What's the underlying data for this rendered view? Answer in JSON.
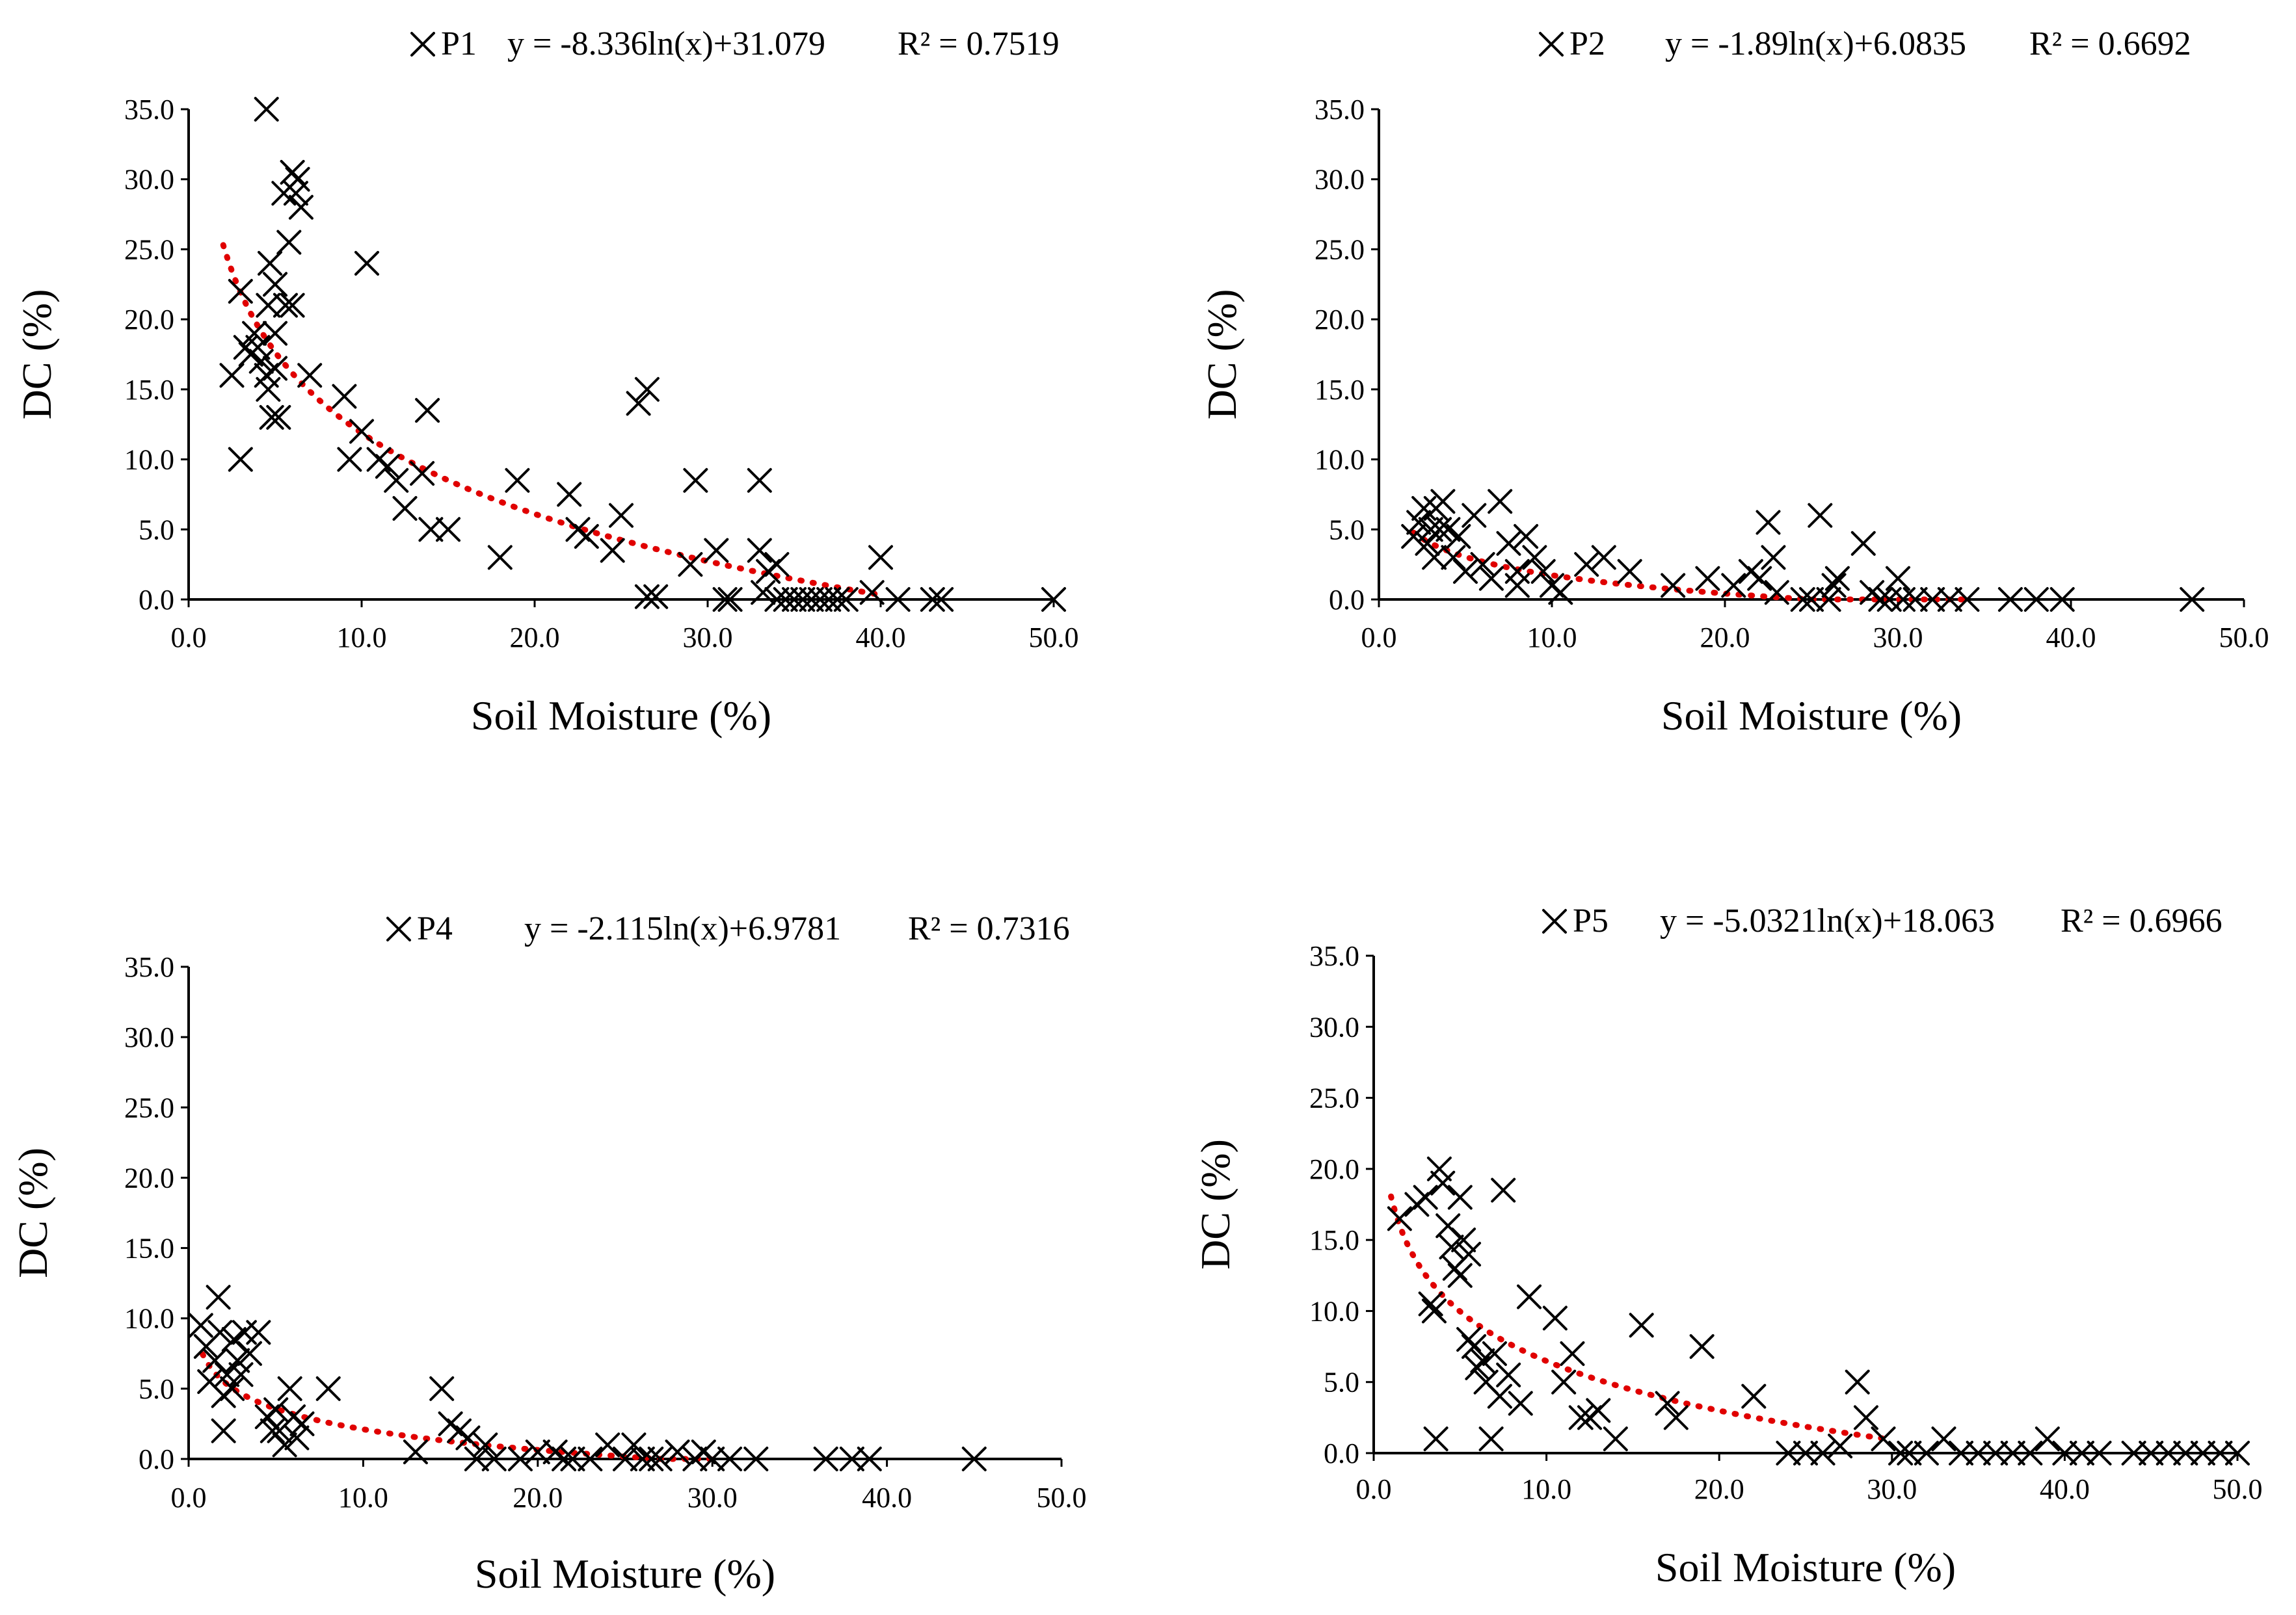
{
  "chart_data": [
    {
      "type": "scatter",
      "series_name": "P1",
      "equation": "y = -8.336ln(x)+31.079",
      "r_squared": "R² = 0.7519",
      "xlabel": "Soil Moisture (%)",
      "ylabel": "DC (%)",
      "xlim": [
        0,
        50
      ],
      "ylim": [
        0,
        35
      ],
      "xticks": [
        "0.0",
        "10.0",
        "20.0",
        "30.0",
        "40.0",
        "50.0"
      ],
      "yticks": [
        "0.0",
        "5.0",
        "10.0",
        "15.0",
        "20.0",
        "25.0",
        "30.0",
        "35.0"
      ],
      "trend": {
        "a": -8.336,
        "b": 31.079,
        "x_from": 2,
        "x_to": 40
      },
      "points": [
        [
          2.5,
          16
        ],
        [
          3,
          22
        ],
        [
          3,
          10
        ],
        [
          3.3,
          18
        ],
        [
          3.6,
          17.5
        ],
        [
          3.8,
          19
        ],
        [
          4,
          18
        ],
        [
          4.2,
          17
        ],
        [
          4.5,
          16
        ],
        [
          4.5,
          35
        ],
        [
          4.6,
          21
        ],
        [
          4.7,
          24
        ],
        [
          4.6,
          15
        ],
        [
          4.8,
          13
        ],
        [
          5,
          22.5
        ],
        [
          5,
          19
        ],
        [
          5,
          16.5
        ],
        [
          5.2,
          13
        ],
        [
          5.5,
          29
        ],
        [
          5.6,
          21
        ],
        [
          5.8,
          25.5
        ],
        [
          6,
          30.5
        ],
        [
          6,
          21
        ],
        [
          6.2,
          29
        ],
        [
          6.5,
          28
        ],
        [
          6.3,
          30
        ],
        [
          7,
          16
        ],
        [
          9,
          14.5
        ],
        [
          9.3,
          10
        ],
        [
          10,
          12
        ],
        [
          10.3,
          24
        ],
        [
          11,
          10
        ],
        [
          11.5,
          9.5
        ],
        [
          12,
          8.5
        ],
        [
          12.5,
          6.5
        ],
        [
          13.5,
          9
        ],
        [
          13.8,
          13.5
        ],
        [
          14,
          5
        ],
        [
          15,
          5
        ],
        [
          18,
          3
        ],
        [
          19,
          8.5
        ],
        [
          22,
          7.5
        ],
        [
          22.5,
          5
        ],
        [
          23,
          4.5
        ],
        [
          24.5,
          3.5
        ],
        [
          25,
          6
        ],
        [
          26,
          14
        ],
        [
          26.5,
          15
        ],
        [
          26.5,
          0.2
        ],
        [
          27,
          0.2
        ],
        [
          29,
          2.5
        ],
        [
          29.3,
          8.5
        ],
        [
          30.5,
          3.5
        ],
        [
          31,
          0
        ],
        [
          31.3,
          0
        ],
        [
          33,
          8.5
        ],
        [
          33,
          3.5
        ],
        [
          33.2,
          0.5
        ],
        [
          33.5,
          2
        ],
        [
          34,
          2.5
        ],
        [
          34,
          0
        ],
        [
          34.5,
          0
        ],
        [
          35,
          0
        ],
        [
          35.5,
          0
        ],
        [
          36,
          0
        ],
        [
          36.5,
          0
        ],
        [
          37,
          0
        ],
        [
          37.5,
          0
        ],
        [
          38,
          0
        ],
        [
          39.5,
          0.5
        ],
        [
          40,
          3
        ],
        [
          41,
          0
        ],
        [
          43,
          0
        ],
        [
          43.5,
          0
        ],
        [
          50,
          0
        ]
      ]
    },
    {
      "type": "scatter",
      "series_name": "P2",
      "equation": "y = -1.89ln(x)+6.0835",
      "r_squared": "R² = 0.6692",
      "xlabel": "Soil Moisture (%)",
      "ylabel": "DC (%)",
      "xlim": [
        0,
        50
      ],
      "ylim": [
        0,
        35
      ],
      "xticks": [
        "0.0",
        "10.0",
        "20.0",
        "30.0",
        "40.0",
        "50.0"
      ],
      "yticks": [
        "0.0",
        "5.0",
        "10.0",
        "15.0",
        "20.0",
        "25.0",
        "30.0",
        "35.0"
      ],
      "trend": {
        "a": -1.89,
        "b": 6.0835,
        "x_from": 2,
        "x_to": 34
      },
      "points": [
        [
          2,
          4.5
        ],
        [
          2.3,
          5.5
        ],
        [
          2.6,
          6.5
        ],
        [
          2.8,
          4
        ],
        [
          3,
          5
        ],
        [
          3.2,
          3
        ],
        [
          3.3,
          6.5
        ],
        [
          3.5,
          5
        ],
        [
          3.7,
          7
        ],
        [
          4,
          5
        ],
        [
          4.3,
          3
        ],
        [
          4.6,
          4.5
        ],
        [
          5,
          2
        ],
        [
          5.5,
          6
        ],
        [
          6,
          2.5
        ],
        [
          6.5,
          1.5
        ],
        [
          7,
          7
        ],
        [
          7.5,
          4
        ],
        [
          8,
          2
        ],
        [
          8,
          1
        ],
        [
          8.5,
          4.5
        ],
        [
          9,
          3
        ],
        [
          9.5,
          2
        ],
        [
          10,
          1
        ],
        [
          10.5,
          0.5
        ],
        [
          12,
          2.5
        ],
        [
          13,
          3
        ],
        [
          14.5,
          2
        ],
        [
          17,
          1
        ],
        [
          19,
          1.5
        ],
        [
          20.5,
          1
        ],
        [
          21.5,
          2
        ],
        [
          22,
          1.5
        ],
        [
          22.5,
          5.5
        ],
        [
          22.8,
          3
        ],
        [
          23,
          0.5
        ],
        [
          24.5,
          0
        ],
        [
          25,
          0
        ],
        [
          25.5,
          6
        ],
        [
          26,
          0
        ],
        [
          26.3,
          1
        ],
        [
          26.5,
          1.5
        ],
        [
          28,
          4
        ],
        [
          28.5,
          0.5
        ],
        [
          29,
          0
        ],
        [
          29.5,
          0
        ],
        [
          30,
          1.5
        ],
        [
          30.3,
          0
        ],
        [
          31,
          0
        ],
        [
          32,
          0
        ],
        [
          33,
          0
        ],
        [
          34,
          0
        ],
        [
          36.5,
          0
        ],
        [
          38,
          0
        ],
        [
          39.5,
          0
        ],
        [
          47,
          0
        ]
      ]
    },
    {
      "type": "scatter",
      "series_name": "P4",
      "equation": "y = -2.115ln(x)+6.9781",
      "r_squared": "R² = 0.7316",
      "xlabel": "Soil Moisture (%)",
      "ylabel": "DC (%)",
      "xlim": [
        0,
        50
      ],
      "ylim": [
        0,
        35
      ],
      "xticks": [
        "0.0",
        "10.0",
        "20.0",
        "30.0",
        "40.0",
        "50.0"
      ],
      "yticks": [
        "0.0",
        "5.0",
        "10.0",
        "15.0",
        "20.0",
        "25.0",
        "30.0",
        "35.0"
      ],
      "trend": {
        "a": -2.115,
        "b": 6.9781,
        "x_from": 0.8,
        "x_to": 30
      },
      "points": [
        [
          0.7,
          9.5
        ],
        [
          1,
          8
        ],
        [
          1.2,
          5.5
        ],
        [
          1.5,
          7
        ],
        [
          1.7,
          11.5
        ],
        [
          1.8,
          9
        ],
        [
          2,
          4.5
        ],
        [
          2,
          2
        ],
        [
          2.2,
          6
        ],
        [
          2.5,
          5
        ],
        [
          2.6,
          8.5
        ],
        [
          2.8,
          7
        ],
        [
          3,
          6
        ],
        [
          3.2,
          9
        ],
        [
          3.5,
          7.5
        ],
        [
          4,
          9
        ],
        [
          4.5,
          3
        ],
        [
          4.8,
          2
        ],
        [
          5,
          3.5
        ],
        [
          5.2,
          2
        ],
        [
          5.5,
          1
        ],
        [
          5.8,
          5
        ],
        [
          6,
          3
        ],
        [
          6.2,
          1.5
        ],
        [
          6.5,
          2.5
        ],
        [
          8,
          5
        ],
        [
          13,
          0.5
        ],
        [
          14.5,
          5
        ],
        [
          15,
          2.5
        ],
        [
          15.5,
          2
        ],
        [
          16,
          1.5
        ],
        [
          16.5,
          0
        ],
        [
          17,
          1
        ],
        [
          17.5,
          0
        ],
        [
          19,
          0
        ],
        [
          20,
          0.5
        ],
        [
          21,
          0.5
        ],
        [
          21.5,
          0
        ],
        [
          22,
          0
        ],
        [
          23,
          0
        ],
        [
          24,
          1
        ],
        [
          25,
          0
        ],
        [
          25.5,
          1
        ],
        [
          26,
          0
        ],
        [
          26.5,
          0
        ],
        [
          27,
          0
        ],
        [
          28,
          0.5
        ],
        [
          29,
          0
        ],
        [
          29.5,
          0.5
        ],
        [
          30,
          0
        ],
        [
          31,
          0
        ],
        [
          32.5,
          0
        ],
        [
          36.5,
          0
        ],
        [
          38,
          0
        ],
        [
          39,
          0
        ],
        [
          45,
          0
        ]
      ]
    },
    {
      "type": "scatter",
      "series_name": "P5",
      "equation": "y = -5.0321ln(x)+18.063",
      "r_squared": "R² = 0.6966",
      "xlabel": "Soil Moisture (%)",
      "ylabel": "DC (%)",
      "xlim": [
        0,
        50
      ],
      "ylim": [
        0,
        35
      ],
      "xticks": [
        "0.0",
        "10.0",
        "20.0",
        "30.0",
        "40.0",
        "50.0"
      ],
      "yticks": [
        "0.0",
        "5.0",
        "10.0",
        "15.0",
        "20.0",
        "25.0",
        "30.0",
        "35.0"
      ],
      "trend": {
        "a": -5.0321,
        "b": 18.063,
        "x_from": 1,
        "x_to": 30
      },
      "points": [
        [
          1.5,
          16.5
        ],
        [
          2.5,
          17.5
        ],
        [
          3,
          18
        ],
        [
          3.3,
          10.5
        ],
        [
          3.5,
          10
        ],
        [
          3.6,
          1
        ],
        [
          3.8,
          20
        ],
        [
          4,
          19
        ],
        [
          4.3,
          16
        ],
        [
          4.5,
          14.5
        ],
        [
          4.7,
          13
        ],
        [
          5,
          18
        ],
        [
          5,
          12.5
        ],
        [
          5.2,
          15
        ],
        [
          5.5,
          14
        ],
        [
          5.5,
          8
        ],
        [
          5.8,
          7.5
        ],
        [
          6,
          6
        ],
        [
          6.3,
          6.5
        ],
        [
          6.5,
          5
        ],
        [
          6.8,
          1
        ],
        [
          7,
          7
        ],
        [
          7.3,
          4
        ],
        [
          7.5,
          18.5
        ],
        [
          7.8,
          5.5
        ],
        [
          8.5,
          3.5
        ],
        [
          9,
          11
        ],
        [
          10.5,
          9.5
        ],
        [
          11,
          5
        ],
        [
          11.5,
          7
        ],
        [
          12,
          2.5
        ],
        [
          12.5,
          2.5
        ],
        [
          13,
          3
        ],
        [
          14,
          1
        ],
        [
          15.5,
          9
        ],
        [
          17,
          3.5
        ],
        [
          17.5,
          2.5
        ],
        [
          19,
          7.5
        ],
        [
          22,
          4
        ],
        [
          24,
          0
        ],
        [
          25,
          0
        ],
        [
          26,
          0
        ],
        [
          27,
          0.5
        ],
        [
          28,
          5
        ],
        [
          28.5,
          2.5
        ],
        [
          29.5,
          1
        ],
        [
          30.5,
          0
        ],
        [
          31,
          0
        ],
        [
          32,
          0
        ],
        [
          33,
          1
        ],
        [
          34,
          0
        ],
        [
          35,
          0
        ],
        [
          36,
          0
        ],
        [
          37,
          0
        ],
        [
          38,
          0
        ],
        [
          39,
          1
        ],
        [
          40,
          0
        ],
        [
          41,
          0
        ],
        [
          42,
          0
        ],
        [
          44,
          0
        ],
        [
          45,
          0
        ],
        [
          46,
          0
        ],
        [
          47,
          0
        ],
        [
          48,
          0
        ],
        [
          49,
          0
        ],
        [
          50,
          0
        ]
      ]
    }
  ]
}
